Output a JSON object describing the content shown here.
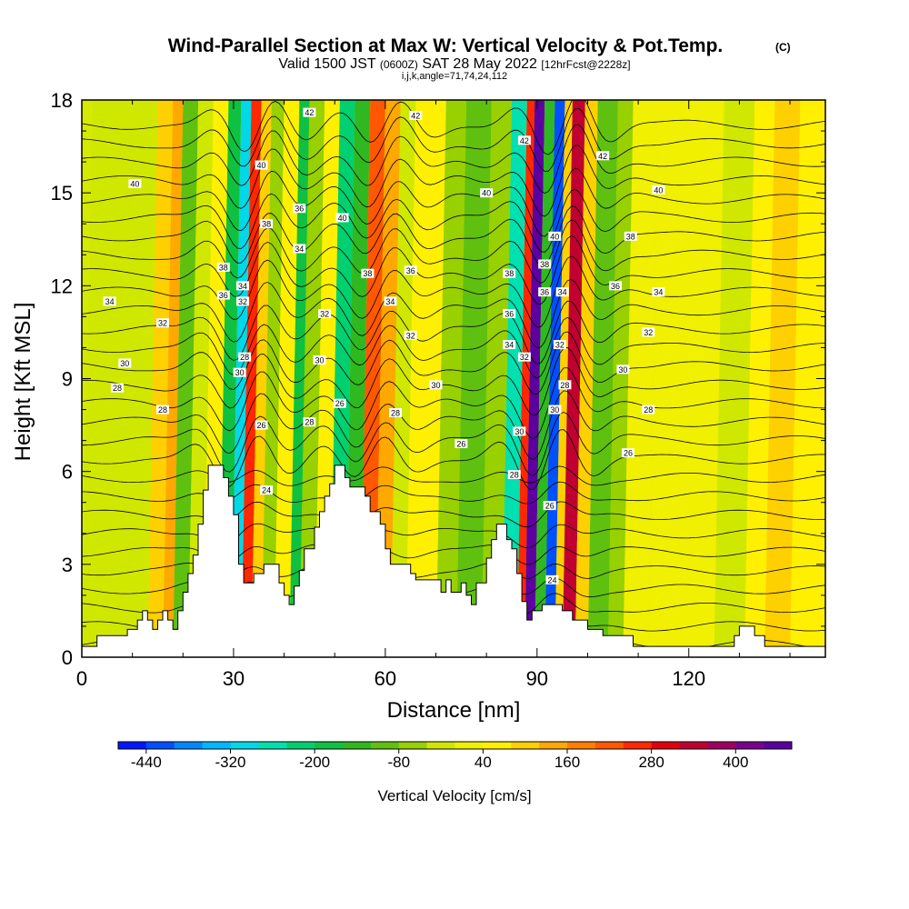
{
  "chart_data": {
    "type": "heatmap",
    "title": "Wind-Parallel Section at Max W: Vertical Velocity & Pot.Temp.",
    "title_mark": "(C)",
    "subtitle_parts": [
      "Valid 1500 JST",
      "(0600Z)",
      "SAT 28 May 2022",
      "[12hrFcst@2228z]"
    ],
    "subtitle2": "i,j,k,angle=71,74,24,112",
    "xlabel": "Distance [nm]",
    "ylabel": "Height [Kft MSL]",
    "xlim": [
      0,
      147
    ],
    "ylim": [
      0,
      18
    ],
    "x_ticks": [
      0,
      30,
      60,
      90,
      120
    ],
    "x_tick_labels": [
      "0",
      "30",
      "60",
      "90",
      "120"
    ],
    "y_ticks": [
      0,
      3,
      6,
      9,
      12,
      15,
      18
    ],
    "y_tick_labels": [
      "0",
      "3",
      "6",
      "9",
      "12",
      "15",
      "18"
    ],
    "colorbar": {
      "label": "Vertical Velocity [cm/s]",
      "min": -480,
      "max": 480,
      "tick_values": [
        -440,
        -320,
        -200,
        -80,
        40,
        160,
        280,
        400
      ],
      "tick_labels": [
        "-440",
        "-320",
        "-200",
        "-80",
        "40",
        "160",
        "280",
        "400"
      ],
      "colors": [
        "#0018ff",
        "#0050ff",
        "#0088ff",
        "#00b8ff",
        "#00d8e8",
        "#00e0b0",
        "#00d070",
        "#10c040",
        "#30b820",
        "#60c010",
        "#98d000",
        "#d0e800",
        "#f0f000",
        "#fff000",
        "#ffd000",
        "#ffa800",
        "#ff8000",
        "#ff5800",
        "#ff2800",
        "#e00010",
        "#c00030",
        "#a00060",
        "#7c0090",
        "#5c00a0"
      ]
    },
    "columns": [
      {
        "x": [
          0,
          4
        ],
        "value": -40
      },
      {
        "x": [
          4,
          13
        ],
        "value": -40
      },
      {
        "x": [
          13,
          16
        ],
        "value": 80
      },
      {
        "x": [
          16,
          18
        ],
        "value": 140
      },
      {
        "x": [
          18,
          21
        ],
        "value": -110
      },
      {
        "x": [
          21,
          24
        ],
        "value": -30
      },
      {
        "x": [
          24,
          27
        ],
        "value": 40
      },
      {
        "x": [
          27,
          29.5
        ],
        "value": -180
      },
      {
        "x": [
          29.5,
          31.5
        ],
        "value": -300
      },
      {
        "x": [
          31.5,
          33.5
        ],
        "value": 260
      },
      {
        "x": [
          33.5,
          35.5
        ],
        "value": 100
      },
      {
        "x": [
          35.5,
          38
        ],
        "value": -80
      },
      {
        "x": [
          38,
          41
        ],
        "value": 40
      },
      {
        "x": [
          41,
          43
        ],
        "value": -180
      },
      {
        "x": [
          43,
          46
        ],
        "value": -80
      },
      {
        "x": [
          46,
          49
        ],
        "value": 40
      },
      {
        "x": [
          49,
          52
        ],
        "value": -230
      },
      {
        "x": [
          52,
          55
        ],
        "value": -150
      },
      {
        "x": [
          55,
          58
        ],
        "value": 200
      },
      {
        "x": [
          58,
          61
        ],
        "value": 140
      },
      {
        "x": [
          61,
          64
        ],
        "value": -40
      },
      {
        "x": [
          64,
          70
        ],
        "value": 40
      },
      {
        "x": [
          70,
          74
        ],
        "value": -60
      },
      {
        "x": [
          74,
          79
        ],
        "value": -110
      },
      {
        "x": [
          79,
          83
        ],
        "value": -60
      },
      {
        "x": [
          83,
          86
        ],
        "value": -260
      },
      {
        "x": [
          86,
          87.5
        ],
        "value": 260
      },
      {
        "x": [
          87.5,
          89.5
        ],
        "value": 440
      },
      {
        "x": [
          89.5,
          91.5
        ],
        "value": -160
      },
      {
        "x": [
          91.5,
          93.5
        ],
        "value": -440
      },
      {
        "x": [
          93.5,
          95
        ],
        "value": 80
      },
      {
        "x": [
          95,
          97.5
        ],
        "value": 320
      },
      {
        "x": [
          97.5,
          100
        ],
        "value": 100
      },
      {
        "x": [
          100,
          104
        ],
        "value": -110
      },
      {
        "x": [
          104,
          107
        ],
        "value": -80
      },
      {
        "x": [
          107,
          112
        ],
        "value": 20
      },
      {
        "x": [
          112,
          125
        ],
        "value": 10
      },
      {
        "x": [
          125,
          131
        ],
        "value": -40
      },
      {
        "x": [
          131,
          135
        ],
        "value": 40
      },
      {
        "x": [
          135,
          140
        ],
        "value": 80
      },
      {
        "x": [
          140,
          147
        ],
        "value": 40
      }
    ],
    "terrain": [
      [
        0,
        0.35
      ],
      [
        3,
        0.35
      ],
      [
        3,
        0.7
      ],
      [
        9,
        0.7
      ],
      [
        9,
        0.9
      ],
      [
        11,
        0.9
      ],
      [
        11,
        1.2
      ],
      [
        12,
        1.2
      ],
      [
        12,
        1.5
      ],
      [
        13,
        1.5
      ],
      [
        13,
        1.2
      ],
      [
        14,
        1.2
      ],
      [
        14,
        0.9
      ],
      [
        15,
        0.9
      ],
      [
        15,
        1.2
      ],
      [
        16,
        1.2
      ],
      [
        16,
        1.5
      ],
      [
        17,
        1.5
      ],
      [
        17,
        1.2
      ],
      [
        18,
        1.2
      ],
      [
        18,
        0.9
      ],
      [
        19,
        0.9
      ],
      [
        19,
        1.5
      ],
      [
        20,
        1.5
      ],
      [
        20,
        2.1
      ],
      [
        21,
        2.1
      ],
      [
        21,
        2.7
      ],
      [
        22,
        2.7
      ],
      [
        22,
        3.3
      ],
      [
        23,
        3.3
      ],
      [
        23,
        4.3
      ],
      [
        24,
        4.3
      ],
      [
        24,
        5.4
      ],
      [
        25,
        5.4
      ],
      [
        25,
        6.2
      ],
      [
        28,
        6.2
      ],
      [
        28,
        5.8
      ],
      [
        29,
        5.8
      ],
      [
        29,
        5.2
      ],
      [
        30,
        5.2
      ],
      [
        30,
        4.6
      ],
      [
        31,
        4.6
      ],
      [
        31,
        3.0
      ],
      [
        32,
        3.0
      ],
      [
        32,
        2.4
      ],
      [
        34,
        2.4
      ],
      [
        34,
        2.7
      ],
      [
        36,
        2.7
      ],
      [
        36,
        3.0
      ],
      [
        39,
        3.0
      ],
      [
        39,
        2.4
      ],
      [
        40,
        2.4
      ],
      [
        40,
        2.0
      ],
      [
        41,
        2.0
      ],
      [
        41,
        1.7
      ],
      [
        42,
        1.7
      ],
      [
        42,
        2.3
      ],
      [
        43,
        2.3
      ],
      [
        43,
        2.8
      ],
      [
        44,
        2.8
      ],
      [
        44,
        3.5
      ],
      [
        46,
        3.5
      ],
      [
        46,
        4.2
      ],
      [
        47,
        4.2
      ],
      [
        47,
        4.7
      ],
      [
        48,
        4.7
      ],
      [
        48,
        5.2
      ],
      [
        49,
        5.2
      ],
      [
        49,
        5.6
      ],
      [
        50,
        5.6
      ],
      [
        50,
        6.2
      ],
      [
        52,
        6.2
      ],
      [
        52,
        5.8
      ],
      [
        53,
        5.8
      ],
      [
        53,
        5.5
      ],
      [
        56,
        5.5
      ],
      [
        56,
        5.2
      ],
      [
        57,
        5.2
      ],
      [
        57,
        4.7
      ],
      [
        59,
        4.7
      ],
      [
        59,
        4.3
      ],
      [
        60,
        4.3
      ],
      [
        60,
        3.5
      ],
      [
        61,
        3.5
      ],
      [
        61,
        3.0
      ],
      [
        65,
        3.0
      ],
      [
        65,
        2.7
      ],
      [
        66,
        2.7
      ],
      [
        66,
        2.5
      ],
      [
        71,
        2.5
      ],
      [
        71,
        2.1
      ],
      [
        72,
        2.1
      ],
      [
        72,
        2.5
      ],
      [
        73,
        2.5
      ],
      [
        73,
        2.1
      ],
      [
        75,
        2.1
      ],
      [
        75,
        2.4
      ],
      [
        76,
        2.4
      ],
      [
        76,
        2.0
      ],
      [
        77,
        2.0
      ],
      [
        77,
        1.7
      ],
      [
        78,
        1.7
      ],
      [
        78,
        2.4
      ],
      [
        80,
        2.4
      ],
      [
        80,
        3.2
      ],
      [
        81,
        3.2
      ],
      [
        81,
        3.8
      ],
      [
        82,
        3.8
      ],
      [
        82,
        4.3
      ],
      [
        84,
        4.3
      ],
      [
        84,
        3.8
      ],
      [
        85,
        3.8
      ],
      [
        85,
        3.5
      ],
      [
        86,
        3.5
      ],
      [
        86,
        2.7
      ],
      [
        87,
        2.7
      ],
      [
        87,
        1.8
      ],
      [
        88,
        1.8
      ],
      [
        88,
        1.2
      ],
      [
        89,
        1.2
      ],
      [
        89,
        1.5
      ],
      [
        91,
        1.5
      ],
      [
        91,
        1.7
      ],
      [
        95,
        1.7
      ],
      [
        95,
        1.5
      ],
      [
        97,
        1.5
      ],
      [
        97,
        1.2
      ],
      [
        100,
        1.2
      ],
      [
        100,
        0.9
      ],
      [
        103,
        0.9
      ],
      [
        103,
        0.7
      ],
      [
        109,
        0.7
      ],
      [
        109,
        0.35
      ],
      [
        129,
        0.35
      ],
      [
        129,
        0.7
      ],
      [
        130,
        0.7
      ],
      [
        130,
        1.0
      ],
      [
        133,
        1.0
      ],
      [
        133,
        0.7
      ],
      [
        135,
        0.7
      ],
      [
        135,
        0.35
      ],
      [
        147,
        0.35
      ]
    ],
    "contour_labels": [
      {
        "text": "40",
        "x": 10.5,
        "y": 15.3
      },
      {
        "text": "34",
        "x": 5.5,
        "y": 11.5
      },
      {
        "text": "32",
        "x": 16,
        "y": 10.8
      },
      {
        "text": "30",
        "x": 8.5,
        "y": 9.5
      },
      {
        "text": "28",
        "x": 7,
        "y": 8.7
      },
      {
        "text": "28",
        "x": 16,
        "y": 8.0
      },
      {
        "text": "38",
        "x": 28,
        "y": 12.6
      },
      {
        "text": "36",
        "x": 28,
        "y": 11.7
      },
      {
        "text": "34",
        "x": 31.8,
        "y": 12.0
      },
      {
        "text": "32",
        "x": 31.8,
        "y": 11.5
      },
      {
        "text": "28",
        "x": 32.2,
        "y": 9.7
      },
      {
        "text": "30",
        "x": 31.2,
        "y": 9.2
      },
      {
        "text": "26",
        "x": 35.5,
        "y": 7.5
      },
      {
        "text": "24",
        "x": 36.5,
        "y": 5.4
      },
      {
        "text": "40",
        "x": 35.5,
        "y": 15.9
      },
      {
        "text": "38",
        "x": 36.5,
        "y": 14.0
      },
      {
        "text": "42",
        "x": 45,
        "y": 17.6
      },
      {
        "text": "36",
        "x": 43,
        "y": 14.5
      },
      {
        "text": "34",
        "x": 43,
        "y": 13.2
      },
      {
        "text": "40",
        "x": 51.5,
        "y": 14.2
      },
      {
        "text": "32",
        "x": 48,
        "y": 11.1
      },
      {
        "text": "30",
        "x": 47,
        "y": 9.6
      },
      {
        "text": "28",
        "x": 45,
        "y": 7.6
      },
      {
        "text": "26",
        "x": 51,
        "y": 8.2
      },
      {
        "text": "42",
        "x": 66,
        "y": 17.5
      },
      {
        "text": "38",
        "x": 56.5,
        "y": 12.4
      },
      {
        "text": "36",
        "x": 65,
        "y": 12.5
      },
      {
        "text": "34",
        "x": 61,
        "y": 11.5
      },
      {
        "text": "32",
        "x": 65,
        "y": 10.4
      },
      {
        "text": "28",
        "x": 62,
        "y": 7.9
      },
      {
        "text": "30",
        "x": 70,
        "y": 8.8
      },
      {
        "text": "26",
        "x": 75,
        "y": 6.9
      },
      {
        "text": "40",
        "x": 80,
        "y": 15.0
      },
      {
        "text": "42",
        "x": 87.5,
        "y": 16.7
      },
      {
        "text": "38",
        "x": 84.5,
        "y": 12.4
      },
      {
        "text": "36",
        "x": 84.5,
        "y": 11.1
      },
      {
        "text": "34",
        "x": 84.5,
        "y": 10.1
      },
      {
        "text": "32",
        "x": 87.5,
        "y": 9.7
      },
      {
        "text": "30",
        "x": 86.5,
        "y": 7.3
      },
      {
        "text": "28",
        "x": 85.5,
        "y": 5.9
      },
      {
        "text": "40",
        "x": 93.5,
        "y": 13.6
      },
      {
        "text": "38",
        "x": 91.5,
        "y": 12.7
      },
      {
        "text": "36",
        "x": 91.5,
        "y": 11.8
      },
      {
        "text": "34",
        "x": 95,
        "y": 11.8
      },
      {
        "text": "32",
        "x": 94.5,
        "y": 10.1
      },
      {
        "text": "28",
        "x": 95.5,
        "y": 8.8
      },
      {
        "text": "30",
        "x": 93.5,
        "y": 8.0
      },
      {
        "text": "26",
        "x": 92.5,
        "y": 4.9
      },
      {
        "text": "42",
        "x": 103,
        "y": 16.2
      },
      {
        "text": "40",
        "x": 114,
        "y": 15.1
      },
      {
        "text": "38",
        "x": 108.5,
        "y": 13.6
      },
      {
        "text": "36",
        "x": 105.5,
        "y": 12.0
      },
      {
        "text": "34",
        "x": 114,
        "y": 11.8
      },
      {
        "text": "32",
        "x": 112,
        "y": 10.5
      },
      {
        "text": "30",
        "x": 107,
        "y": 9.3
      },
      {
        "text": "28",
        "x": 112,
        "y": 8.0
      },
      {
        "text": "26",
        "x": 108,
        "y": 6.6
      },
      {
        "text": "24",
        "x": 93,
        "y": 2.5
      }
    ],
    "grid": false
  }
}
